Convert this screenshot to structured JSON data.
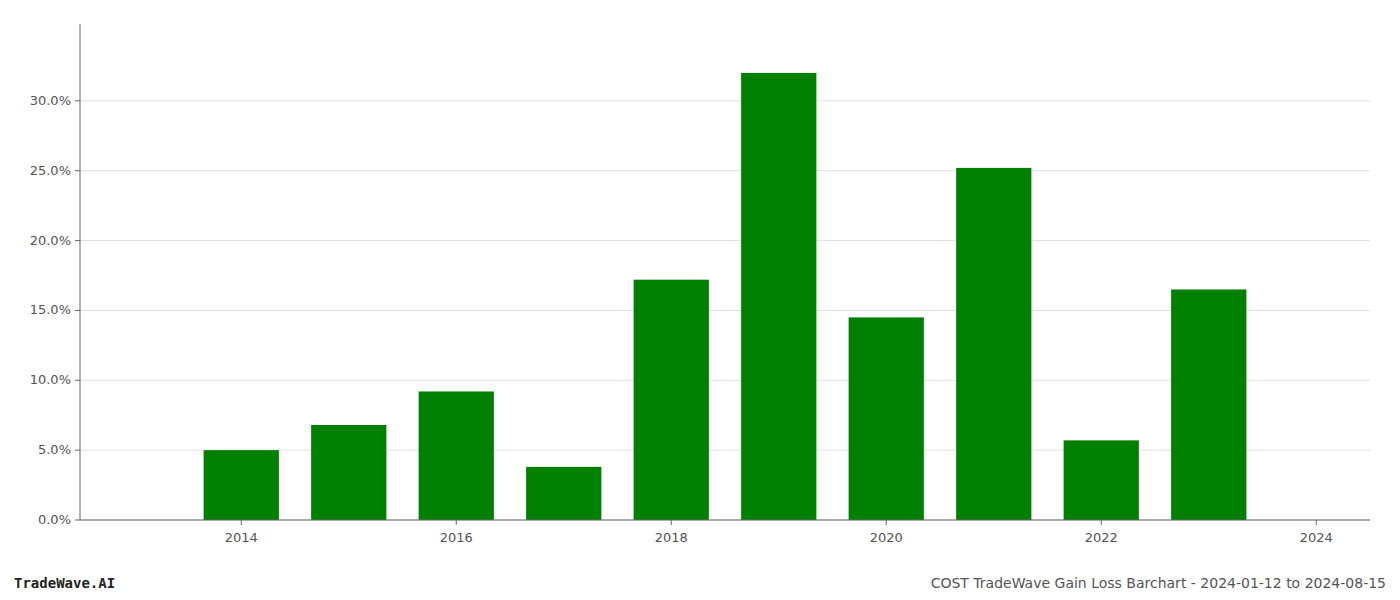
{
  "chart_data": {
    "type": "bar",
    "x": [
      2014,
      2015,
      2016,
      2017,
      2018,
      2019,
      2020,
      2021,
      2022,
      2023
    ],
    "values": [
      0.05,
      0.068,
      0.092,
      0.038,
      0.172,
      0.32,
      0.145,
      0.252,
      0.057,
      0.165
    ],
    "color": "#008000",
    "xlim": [
      2012.5,
      2024.5
    ],
    "xticks": [
      2014,
      2016,
      2018,
      2020,
      2022,
      2024
    ],
    "ylim": [
      0,
      0.355
    ],
    "yticks": [
      {
        "value": 0.0,
        "label": "0.0%"
      },
      {
        "value": 0.05,
        "label": "5.0%"
      },
      {
        "value": 0.1,
        "label": "10.0%"
      },
      {
        "value": 0.15,
        "label": "15.0%"
      },
      {
        "value": 0.2,
        "label": "20.0%"
      },
      {
        "value": 0.25,
        "label": "25.0%"
      },
      {
        "value": 0.3,
        "label": "30.0%"
      }
    ],
    "grid": true,
    "annotations": [
      "TradeWave.AI",
      "COST TradeWave Gain Loss Barchart - 2024-01-12 to 2024-08-15"
    ]
  }
}
